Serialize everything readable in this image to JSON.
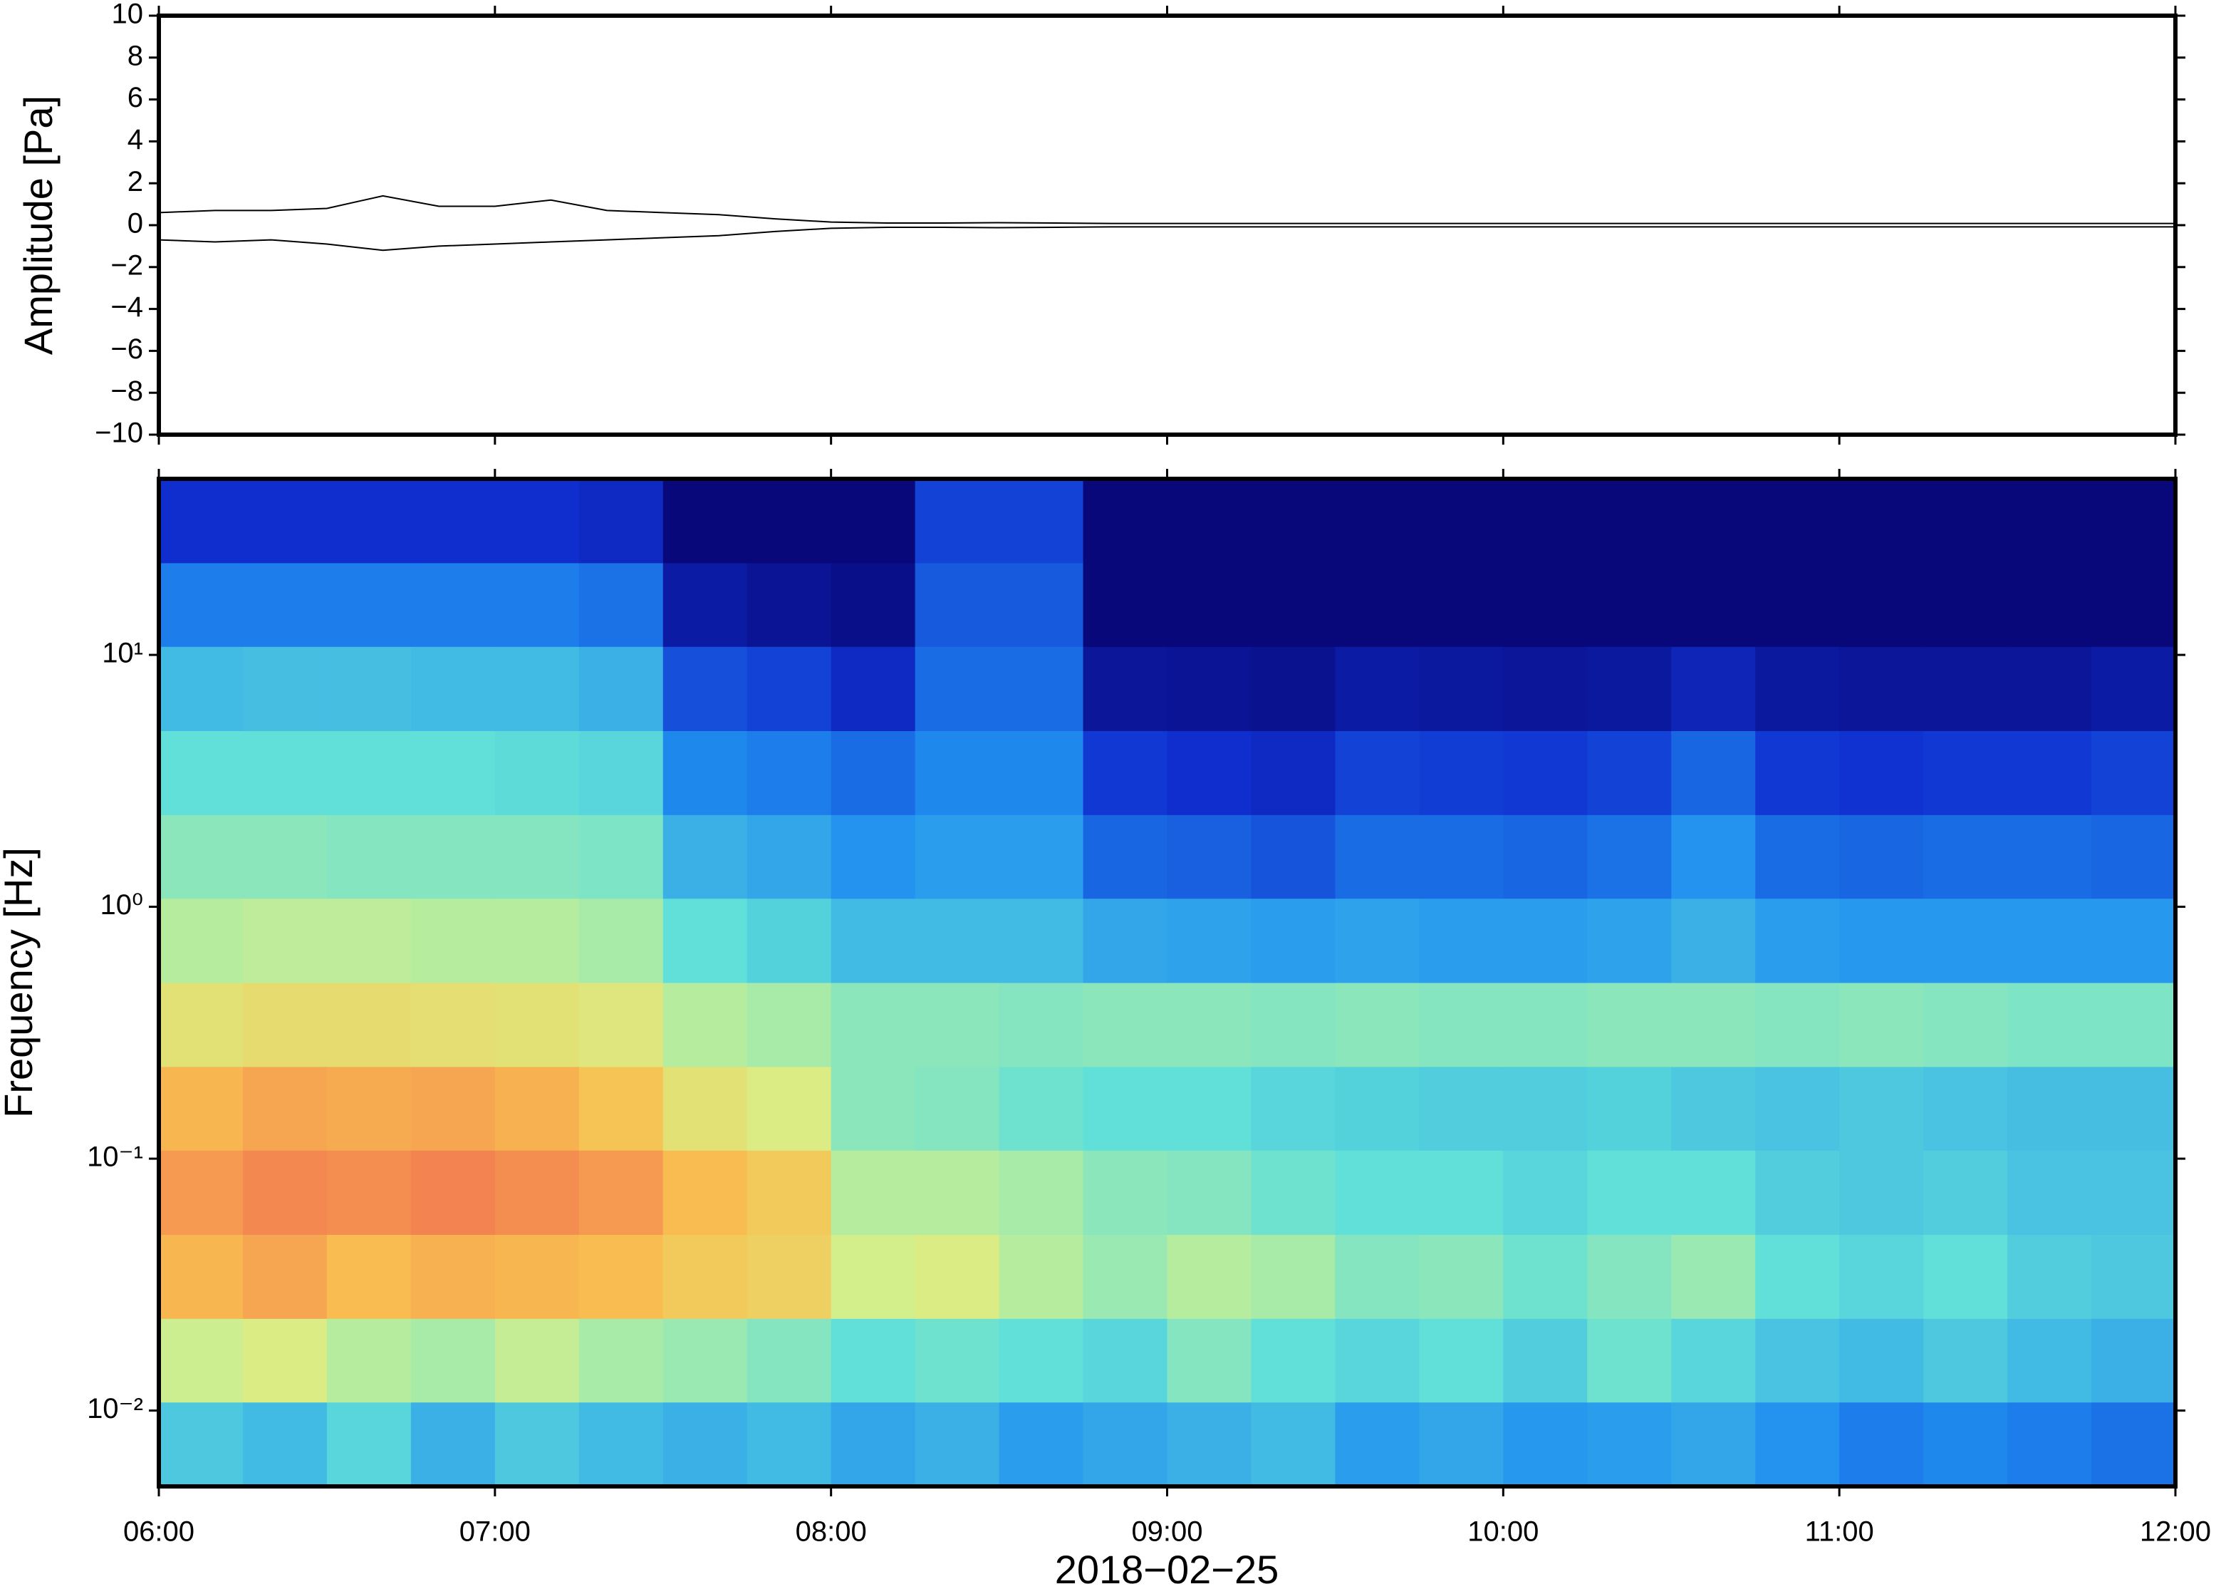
{
  "chart_data": [
    {
      "type": "line",
      "ylabel": "Amplitude [Pa]",
      "x": [
        "06:00",
        "06:10",
        "06:20",
        "06:30",
        "06:40",
        "06:50",
        "07:00",
        "07:10",
        "07:20",
        "07:30",
        "07:40",
        "07:50",
        "08:00",
        "08:10",
        "08:20",
        "08:30",
        "08:40",
        "08:50",
        "09:00",
        "09:10",
        "09:20",
        "09:30",
        "09:40",
        "09:50",
        "10:00",
        "10:10",
        "10:20",
        "10:30",
        "10:40",
        "10:50",
        "11:00",
        "11:10",
        "11:20",
        "11:30",
        "11:40",
        "11:50",
        "12:00"
      ],
      "series": [
        {
          "color": "#000000",
          "values": [
            0.6,
            0.7,
            0.7,
            0.8,
            1.4,
            0.9,
            0.9,
            1.2,
            0.7,
            0.6,
            0.5,
            0.3,
            0.15,
            0.1,
            0.1,
            0.12,
            0.1,
            0.08,
            0.08,
            0.08,
            0.08,
            0.08,
            0.08,
            0.08,
            0.08,
            0.08,
            0.08,
            0.08,
            0.08,
            0.08,
            0.08,
            0.08,
            0.08,
            0.08,
            0.08,
            0.08,
            0.08
          ]
        },
        {
          "color": "#000000",
          "values": [
            -0.7,
            -0.8,
            -0.7,
            -0.9,
            -1.2,
            -1.0,
            -0.9,
            -0.8,
            -0.7,
            -0.6,
            -0.5,
            -0.3,
            -0.15,
            -0.1,
            -0.1,
            -0.12,
            -0.1,
            -0.08,
            -0.08,
            -0.08,
            -0.08,
            -0.08,
            -0.08,
            -0.08,
            -0.08,
            -0.08,
            -0.08,
            -0.08,
            -0.08,
            -0.08,
            -0.08,
            -0.08,
            -0.08,
            -0.08,
            -0.08,
            -0.08,
            -0.08
          ]
        }
      ],
      "xlim": [
        "06:00",
        "12:00"
      ],
      "ylim": [
        -10,
        10
      ],
      "yticks": [
        {
          "value": -10,
          "label": "−10"
        },
        {
          "value": -8,
          "label": "−8"
        },
        {
          "value": -6,
          "label": "−6"
        },
        {
          "value": -4,
          "label": "−4"
        },
        {
          "value": -2,
          "label": "−2"
        },
        0,
        2,
        4,
        6,
        8,
        10
      ]
    },
    {
      "type": "heatmap",
      "ylabel": "Frequency [Hz]",
      "xlabel": "2018−02−25",
      "log_y": true,
      "x": [
        "06:00",
        "06:15",
        "06:30",
        "06:45",
        "07:00",
        "07:15",
        "07:30",
        "07:45",
        "08:00",
        "08:15",
        "08:30",
        "08:45",
        "09:00",
        "09:15",
        "09:30",
        "09:45",
        "10:00",
        "10:15",
        "10:30",
        "10:45",
        "11:00",
        "11:15",
        "11:30",
        "11:45",
        "12:00"
      ],
      "y": [
        0.005,
        0.0108,
        0.0232,
        0.05,
        0.108,
        0.232,
        0.5,
        1.08,
        2.32,
        5,
        10.8,
        23.2,
        50
      ],
      "values": [
        [
          0.45,
          0.42,
          0.48,
          0.4,
          0.45,
          0.42,
          0.4,
          0.42,
          0.38,
          0.4,
          0.36,
          0.38,
          0.4,
          0.42,
          0.36,
          0.38,
          0.35,
          0.36,
          0.38,
          0.34,
          0.3,
          0.32,
          0.3,
          0.28
        ],
        [
          0.65,
          0.68,
          0.62,
          0.6,
          0.64,
          0.6,
          0.58,
          0.55,
          0.5,
          0.52,
          0.5,
          0.48,
          0.55,
          0.5,
          0.48,
          0.5,
          0.46,
          0.52,
          0.48,
          0.44,
          0.42,
          0.45,
          0.42,
          0.4
        ],
        [
          0.85,
          0.88,
          0.84,
          0.86,
          0.85,
          0.84,
          0.8,
          0.78,
          0.66,
          0.68,
          0.62,
          0.58,
          0.62,
          0.6,
          0.55,
          0.56,
          0.52,
          0.55,
          0.58,
          0.5,
          0.48,
          0.5,
          0.46,
          0.45
        ],
        [
          0.9,
          0.93,
          0.92,
          0.94,
          0.92,
          0.9,
          0.84,
          0.8,
          0.62,
          0.62,
          0.6,
          0.56,
          0.55,
          0.52,
          0.5,
          0.5,
          0.48,
          0.5,
          0.5,
          0.46,
          0.45,
          0.46,
          0.44,
          0.44
        ],
        [
          0.85,
          0.88,
          0.87,
          0.88,
          0.86,
          0.82,
          0.72,
          0.68,
          0.56,
          0.55,
          0.52,
          0.5,
          0.5,
          0.48,
          0.47,
          0.46,
          0.46,
          0.47,
          0.45,
          0.44,
          0.45,
          0.44,
          0.43,
          0.43
        ],
        [
          0.72,
          0.74,
          0.74,
          0.73,
          0.72,
          0.7,
          0.62,
          0.6,
          0.56,
          0.56,
          0.55,
          0.56,
          0.56,
          0.55,
          0.56,
          0.55,
          0.55,
          0.56,
          0.56,
          0.55,
          0.56,
          0.55,
          0.54,
          0.54
        ],
        [
          0.62,
          0.63,
          0.63,
          0.62,
          0.62,
          0.6,
          0.5,
          0.47,
          0.42,
          0.42,
          0.42,
          0.38,
          0.37,
          0.36,
          0.37,
          0.36,
          0.36,
          0.37,
          0.4,
          0.36,
          0.35,
          0.35,
          0.35,
          0.35
        ],
        [
          0.56,
          0.56,
          0.55,
          0.55,
          0.55,
          0.54,
          0.4,
          0.38,
          0.34,
          0.36,
          0.36,
          0.26,
          0.25,
          0.23,
          0.27,
          0.27,
          0.26,
          0.28,
          0.34,
          0.27,
          0.26,
          0.27,
          0.27,
          0.26
        ],
        [
          0.5,
          0.5,
          0.5,
          0.5,
          0.49,
          0.48,
          0.32,
          0.3,
          0.27,
          0.32,
          0.32,
          0.18,
          0.16,
          0.14,
          0.2,
          0.19,
          0.18,
          0.2,
          0.26,
          0.18,
          0.17,
          0.18,
          0.18,
          0.2
        ],
        [
          0.42,
          0.43,
          0.43,
          0.42,
          0.42,
          0.4,
          0.22,
          0.2,
          0.14,
          0.27,
          0.27,
          0.06,
          0.05,
          0.04,
          0.08,
          0.07,
          0.06,
          0.07,
          0.12,
          0.07,
          0.06,
          0.06,
          0.06,
          0.08
        ],
        [
          0.3,
          0.3,
          0.3,
          0.3,
          0.3,
          0.28,
          0.08,
          0.05,
          0.03,
          0.24,
          0.24,
          0,
          0,
          0,
          0,
          0,
          0,
          0,
          0,
          0,
          0,
          0,
          0,
          0
        ],
        [
          0.16,
          0.16,
          0.16,
          0.16,
          0.16,
          0.14,
          0,
          0,
          0,
          0.2,
          0.2,
          0,
          0,
          0,
          0,
          0,
          0,
          0,
          0,
          0,
          0,
          0,
          0,
          0
        ]
      ],
      "zlim": [
        0,
        1
      ],
      "colorscale": [
        "#08087a",
        "#1030d0",
        "#2090f0",
        "#60e0d8",
        "#d8f088",
        "#f8c050",
        "#f06050"
      ],
      "xlim": [
        "06:00",
        "12:00"
      ],
      "ylim": [
        0.005,
        50
      ],
      "xticks": [
        "06:00",
        "07:00",
        "08:00",
        "09:00",
        "10:00",
        "11:00",
        "12:00"
      ],
      "yticks": [
        {
          "value": 0.01,
          "label": "10⁻²"
        },
        {
          "value": 0.1,
          "label": "10⁻¹"
        },
        {
          "value": 1,
          "label": "10⁰"
        },
        {
          "value": 10,
          "label": "10¹"
        }
      ]
    }
  ]
}
